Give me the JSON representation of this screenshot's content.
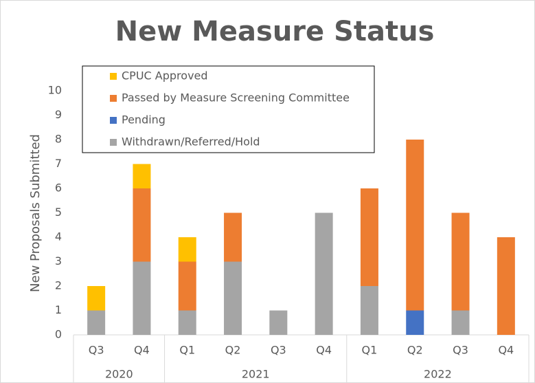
{
  "chart_data": {
    "type": "stacked_bar",
    "title": "New Measure Status",
    "y_label": "New Proposals Submitted",
    "categories": [
      "Q3",
      "Q4",
      "Q1",
      "Q2",
      "Q3",
      "Q4",
      "Q1",
      "Q2",
      "Q3",
      "Q4"
    ],
    "category_groups": [
      "2020",
      "2020",
      "2021",
      "2021",
      "2021",
      "2021",
      "2022",
      "2022",
      "2022",
      "2022"
    ],
    "series": [
      {
        "name": "Withdrawn/Referred/Hold",
        "color": "#a5a5a5",
        "values": [
          1,
          3,
          1,
          3,
          1,
          5,
          2,
          0,
          1,
          0
        ]
      },
      {
        "name": "Pending",
        "color": "#4472c4",
        "values": [
          0,
          0,
          0,
          0,
          0,
          0,
          0,
          1,
          0,
          0
        ]
      },
      {
        "name": "Passed by Measure Screening Committee",
        "color": "#ed7d31",
        "values": [
          0,
          3,
          2,
          2,
          0,
          0,
          4,
          7,
          4,
          4
        ]
      },
      {
        "name": "CPUC Approved",
        "color": "#ffc000",
        "values": [
          1,
          1,
          1,
          0,
          0,
          0,
          0,
          0,
          0,
          0
        ]
      }
    ],
    "ylim": [
      0,
      10
    ],
    "yticks": [
      0,
      1,
      2,
      3,
      4,
      5,
      6,
      7,
      8,
      9,
      10
    ],
    "grid": false,
    "legend": "top-left"
  }
}
